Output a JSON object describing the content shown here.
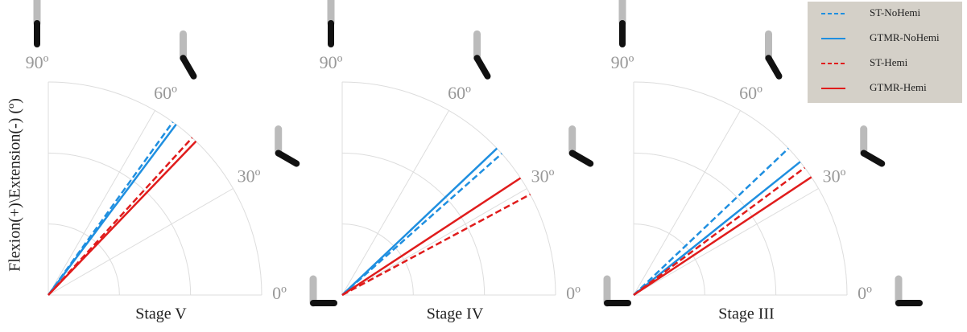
{
  "chart_data": {
    "type": "polar",
    "ylabel": "Flexion(+)\\Extension(-) (º)",
    "categories": [
      "Stage V",
      "Stage IV",
      "Stage III"
    ],
    "thetalim": [
      0,
      90
    ],
    "thetaticks": [
      {
        "value": 0,
        "label": "0º"
      },
      {
        "value": 30,
        "label": "30º"
      },
      {
        "value": 60,
        "label": "60º"
      },
      {
        "value": 90,
        "label": "90º"
      }
    ],
    "grid": true,
    "legend": "upper right",
    "series": [
      {
        "name": "ST-NoHemi",
        "color": "#1f8fe0",
        "dashed": true,
        "values": [
          54.3,
          41.6,
          43.5
        ]
      },
      {
        "name": "GTMR-NoHemi",
        "color": "#1f8fe0",
        "dashed": false,
        "values": [
          53.2,
          43.5,
          38.7
        ]
      },
      {
        "name": "ST-Hemi",
        "color": "#e01c1c",
        "dashed": true,
        "values": [
          47.6,
          28.2,
          36.7
        ]
      },
      {
        "name": "GTMR-Hemi",
        "color": "#e01c1c",
        "dashed": false,
        "values": [
          46.2,
          33.3,
          33.6
        ]
      }
    ]
  }
}
